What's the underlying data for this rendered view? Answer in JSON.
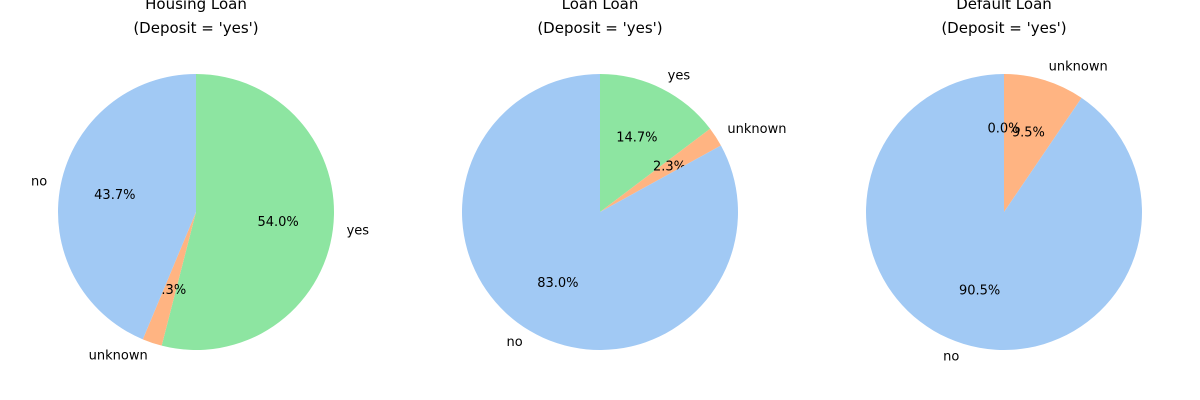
{
  "chart_data": [
    {
      "type": "pie",
      "title_line1": "Housing Loan",
      "title_line2": "(Deposit = 'yes')",
      "start_angle_deg": 90,
      "direction": "clockwise",
      "slices": [
        {
          "label": "yes",
          "value": 54.0,
          "pct_label": "54.0%",
          "color": "#8de5a1"
        },
        {
          "label": "unknown",
          "value": 2.3,
          "pct_label": "2.3%",
          "color": "#ffb482"
        },
        {
          "label": "no",
          "value": 43.7,
          "pct_label": "43.7%",
          "color": "#a1c9f4"
        }
      ]
    },
    {
      "type": "pie",
      "title_line1": "Loan Loan",
      "title_line2": "(Deposit = 'yes')",
      "start_angle_deg": 90,
      "direction": "clockwise",
      "slices": [
        {
          "label": "yes",
          "value": 14.7,
          "pct_label": "14.7%",
          "color": "#8de5a1"
        },
        {
          "label": "unknown",
          "value": 2.3,
          "pct_label": "2.3%",
          "color": "#ffb482"
        },
        {
          "label": "no",
          "value": 83.0,
          "pct_label": "83.0%",
          "color": "#a1c9f4"
        }
      ]
    },
    {
      "type": "pie",
      "title_line1": "Default Loan",
      "title_line2": "(Deposit = 'yes')",
      "start_angle_deg": 90,
      "direction": "clockwise",
      "slices": [
        {
          "label": "unknown",
          "value": 9.5,
          "pct_label": "9.5%",
          "color": "#ffb482"
        },
        {
          "label": "no",
          "value": 90.5,
          "pct_label": "90.5%",
          "color": "#a1c9f4"
        },
        {
          "label": "",
          "value": 0.0,
          "pct_label": "0.0%",
          "color": "#8de5a1"
        }
      ]
    }
  ]
}
